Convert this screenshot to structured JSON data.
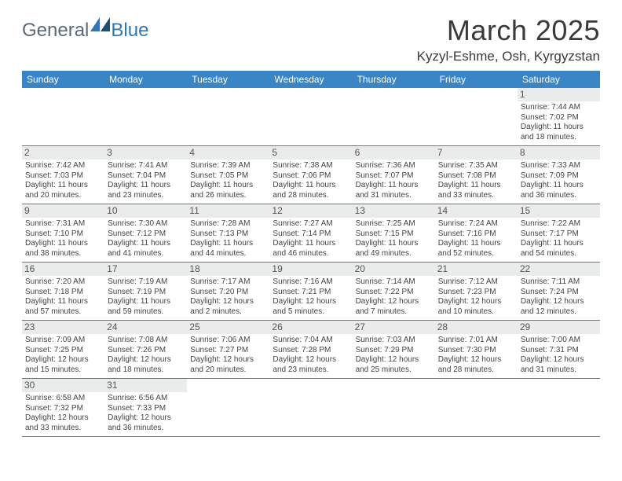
{
  "logo": {
    "main": "General",
    "accent": "Blue"
  },
  "title": "March 2025",
  "location": "Kyzyl-Eshme, Osh, Kyrgyzstan",
  "colors": {
    "header_bg": "#3a85c5",
    "header_text": "#ffffff",
    "daynum_bg": "#e9eceb",
    "row_border": "#3a85c5",
    "logo_main": "#5a6a78",
    "logo_accent": "#2f77b6",
    "body_text": "#444444"
  },
  "weekdays": [
    "Sunday",
    "Monday",
    "Tuesday",
    "Wednesday",
    "Thursday",
    "Friday",
    "Saturday"
  ],
  "weeks": [
    [
      null,
      null,
      null,
      null,
      null,
      null,
      {
        "n": "1",
        "sr": "Sunrise: 7:44 AM",
        "ss": "Sunset: 7:02 PM",
        "d1": "Daylight: 11 hours",
        "d2": "and 18 minutes."
      }
    ],
    [
      {
        "n": "2",
        "sr": "Sunrise: 7:42 AM",
        "ss": "Sunset: 7:03 PM",
        "d1": "Daylight: 11 hours",
        "d2": "and 20 minutes."
      },
      {
        "n": "3",
        "sr": "Sunrise: 7:41 AM",
        "ss": "Sunset: 7:04 PM",
        "d1": "Daylight: 11 hours",
        "d2": "and 23 minutes."
      },
      {
        "n": "4",
        "sr": "Sunrise: 7:39 AM",
        "ss": "Sunset: 7:05 PM",
        "d1": "Daylight: 11 hours",
        "d2": "and 26 minutes."
      },
      {
        "n": "5",
        "sr": "Sunrise: 7:38 AM",
        "ss": "Sunset: 7:06 PM",
        "d1": "Daylight: 11 hours",
        "d2": "and 28 minutes."
      },
      {
        "n": "6",
        "sr": "Sunrise: 7:36 AM",
        "ss": "Sunset: 7:07 PM",
        "d1": "Daylight: 11 hours",
        "d2": "and 31 minutes."
      },
      {
        "n": "7",
        "sr": "Sunrise: 7:35 AM",
        "ss": "Sunset: 7:08 PM",
        "d1": "Daylight: 11 hours",
        "d2": "and 33 minutes."
      },
      {
        "n": "8",
        "sr": "Sunrise: 7:33 AM",
        "ss": "Sunset: 7:09 PM",
        "d1": "Daylight: 11 hours",
        "d2": "and 36 minutes."
      }
    ],
    [
      {
        "n": "9",
        "sr": "Sunrise: 7:31 AM",
        "ss": "Sunset: 7:10 PM",
        "d1": "Daylight: 11 hours",
        "d2": "and 38 minutes."
      },
      {
        "n": "10",
        "sr": "Sunrise: 7:30 AM",
        "ss": "Sunset: 7:12 PM",
        "d1": "Daylight: 11 hours",
        "d2": "and 41 minutes."
      },
      {
        "n": "11",
        "sr": "Sunrise: 7:28 AM",
        "ss": "Sunset: 7:13 PM",
        "d1": "Daylight: 11 hours",
        "d2": "and 44 minutes."
      },
      {
        "n": "12",
        "sr": "Sunrise: 7:27 AM",
        "ss": "Sunset: 7:14 PM",
        "d1": "Daylight: 11 hours",
        "d2": "and 46 minutes."
      },
      {
        "n": "13",
        "sr": "Sunrise: 7:25 AM",
        "ss": "Sunset: 7:15 PM",
        "d1": "Daylight: 11 hours",
        "d2": "and 49 minutes."
      },
      {
        "n": "14",
        "sr": "Sunrise: 7:24 AM",
        "ss": "Sunset: 7:16 PM",
        "d1": "Daylight: 11 hours",
        "d2": "and 52 minutes."
      },
      {
        "n": "15",
        "sr": "Sunrise: 7:22 AM",
        "ss": "Sunset: 7:17 PM",
        "d1": "Daylight: 11 hours",
        "d2": "and 54 minutes."
      }
    ],
    [
      {
        "n": "16",
        "sr": "Sunrise: 7:20 AM",
        "ss": "Sunset: 7:18 PM",
        "d1": "Daylight: 11 hours",
        "d2": "and 57 minutes."
      },
      {
        "n": "17",
        "sr": "Sunrise: 7:19 AM",
        "ss": "Sunset: 7:19 PM",
        "d1": "Daylight: 11 hours",
        "d2": "and 59 minutes."
      },
      {
        "n": "18",
        "sr": "Sunrise: 7:17 AM",
        "ss": "Sunset: 7:20 PM",
        "d1": "Daylight: 12 hours",
        "d2": "and 2 minutes."
      },
      {
        "n": "19",
        "sr": "Sunrise: 7:16 AM",
        "ss": "Sunset: 7:21 PM",
        "d1": "Daylight: 12 hours",
        "d2": "and 5 minutes."
      },
      {
        "n": "20",
        "sr": "Sunrise: 7:14 AM",
        "ss": "Sunset: 7:22 PM",
        "d1": "Daylight: 12 hours",
        "d2": "and 7 minutes."
      },
      {
        "n": "21",
        "sr": "Sunrise: 7:12 AM",
        "ss": "Sunset: 7:23 PM",
        "d1": "Daylight: 12 hours",
        "d2": "and 10 minutes."
      },
      {
        "n": "22",
        "sr": "Sunrise: 7:11 AM",
        "ss": "Sunset: 7:24 PM",
        "d1": "Daylight: 12 hours",
        "d2": "and 12 minutes."
      }
    ],
    [
      {
        "n": "23",
        "sr": "Sunrise: 7:09 AM",
        "ss": "Sunset: 7:25 PM",
        "d1": "Daylight: 12 hours",
        "d2": "and 15 minutes."
      },
      {
        "n": "24",
        "sr": "Sunrise: 7:08 AM",
        "ss": "Sunset: 7:26 PM",
        "d1": "Daylight: 12 hours",
        "d2": "and 18 minutes."
      },
      {
        "n": "25",
        "sr": "Sunrise: 7:06 AM",
        "ss": "Sunset: 7:27 PM",
        "d1": "Daylight: 12 hours",
        "d2": "and 20 minutes."
      },
      {
        "n": "26",
        "sr": "Sunrise: 7:04 AM",
        "ss": "Sunset: 7:28 PM",
        "d1": "Daylight: 12 hours",
        "d2": "and 23 minutes."
      },
      {
        "n": "27",
        "sr": "Sunrise: 7:03 AM",
        "ss": "Sunset: 7:29 PM",
        "d1": "Daylight: 12 hours",
        "d2": "and 25 minutes."
      },
      {
        "n": "28",
        "sr": "Sunrise: 7:01 AM",
        "ss": "Sunset: 7:30 PM",
        "d1": "Daylight: 12 hours",
        "d2": "and 28 minutes."
      },
      {
        "n": "29",
        "sr": "Sunrise: 7:00 AM",
        "ss": "Sunset: 7:31 PM",
        "d1": "Daylight: 12 hours",
        "d2": "and 31 minutes."
      }
    ],
    [
      {
        "n": "30",
        "sr": "Sunrise: 6:58 AM",
        "ss": "Sunset: 7:32 PM",
        "d1": "Daylight: 12 hours",
        "d2": "and 33 minutes."
      },
      {
        "n": "31",
        "sr": "Sunrise: 6:56 AM",
        "ss": "Sunset: 7:33 PM",
        "d1": "Daylight: 12 hours",
        "d2": "and 36 minutes."
      },
      null,
      null,
      null,
      null,
      null
    ]
  ]
}
